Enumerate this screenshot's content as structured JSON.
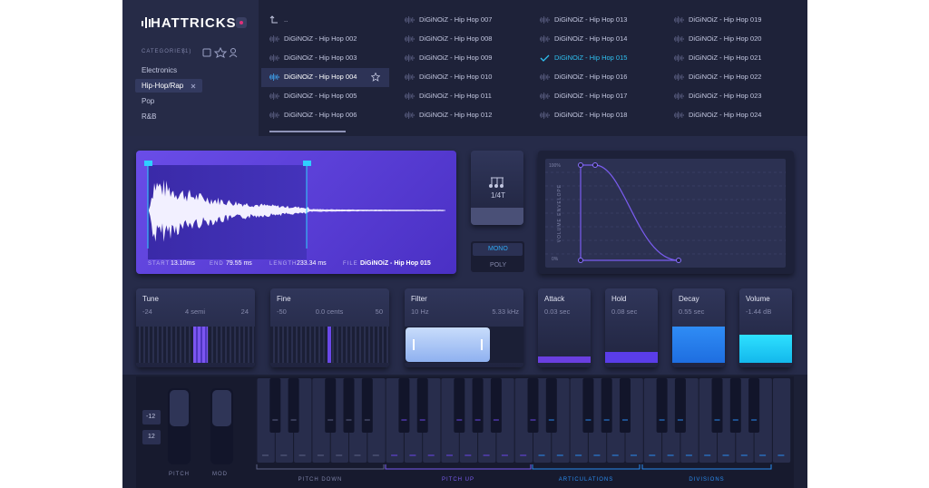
{
  "header": {
    "logo": "HATTRICKS"
  },
  "sidebar": {
    "categories_label": "CATEGORIES",
    "categories_count": "(1)",
    "categories": [
      "Electronics",
      "Hip-Hop/Rap",
      "Pop",
      "R&B"
    ]
  },
  "browser": {
    "columns": [
      [
        "..",
        "DiGiNOiZ - Hip Hop 002",
        "DiGiNOiZ - Hip Hop 003",
        "DiGiNOiZ - Hip Hop 004",
        "DiGiNOiZ - Hip Hop 005",
        "DiGiNOiZ - Hip Hop 006"
      ],
      [
        "DiGiNOiZ - Hip Hop 007",
        "DiGiNOiZ - Hip Hop 008",
        "DiGiNOiZ - Hip Hop 009",
        "DiGiNOiZ - Hip Hop 010",
        "DiGiNOiZ - Hip Hop 011",
        "DiGiNOiZ - Hip Hop 012"
      ],
      [
        "DiGiNOiZ - Hip Hop 013",
        "DiGiNOiZ - Hip Hop 014",
        "DiGiNOiZ - Hip Hop 015",
        "DiGiNOiZ - Hip Hop 016",
        "DiGiNOiZ - Hip Hop 017",
        "DiGiNOiZ - Hip Hop 018"
      ],
      [
        "DiGiNOiZ - Hip Hop 019",
        "DiGiNOiZ - Hip Hop 020",
        "DiGiNOiZ - Hip Hop 021",
        "DiGiNOiZ - Hip Hop 022",
        "DiGiNOiZ - Hip Hop 023",
        "DiGiNOiZ - Hip Hop 024"
      ]
    ]
  },
  "sample": {
    "start_label": "START",
    "start": "13.10ms",
    "end_label": "END",
    "end": "79.55 ms",
    "length_label": "LENGTH",
    "length": "233.34 ms",
    "file_label": "FILE",
    "file": "DiGiNOiZ - Hip Hop 015"
  },
  "rate": {
    "value": "1/4T",
    "mono": "MONO",
    "poly": "POLY"
  },
  "envelope": {
    "title": "VOLUME ENVELOPE",
    "max": "100%",
    "min": "0%"
  },
  "controls": {
    "tune": {
      "title": "Tune",
      "min": "-24",
      "value": "4 semi",
      "max": "24"
    },
    "fine": {
      "title": "Fine",
      "min": "-50",
      "value": "0.0 cents",
      "max": "50"
    },
    "filter": {
      "title": "Filter",
      "min": "10 Hz",
      "value": "5.33 kHz"
    },
    "attack": {
      "title": "Attack",
      "value": "0.03 sec"
    },
    "hold": {
      "title": "Hold",
      "value": "0.08 sec"
    },
    "decay": {
      "title": "Decay",
      "value": "0.55 sec"
    },
    "volume": {
      "title": "Volume",
      "value": "-1.44 dB"
    }
  },
  "keyboard": {
    "octave_down": "-12",
    "octave_up": "12",
    "pitch": "PITCH",
    "mod": "MOD",
    "zones": [
      "PITCH DOWN",
      "PITCH UP",
      "ARTICULATIONS",
      "DIVISIONS"
    ]
  }
}
